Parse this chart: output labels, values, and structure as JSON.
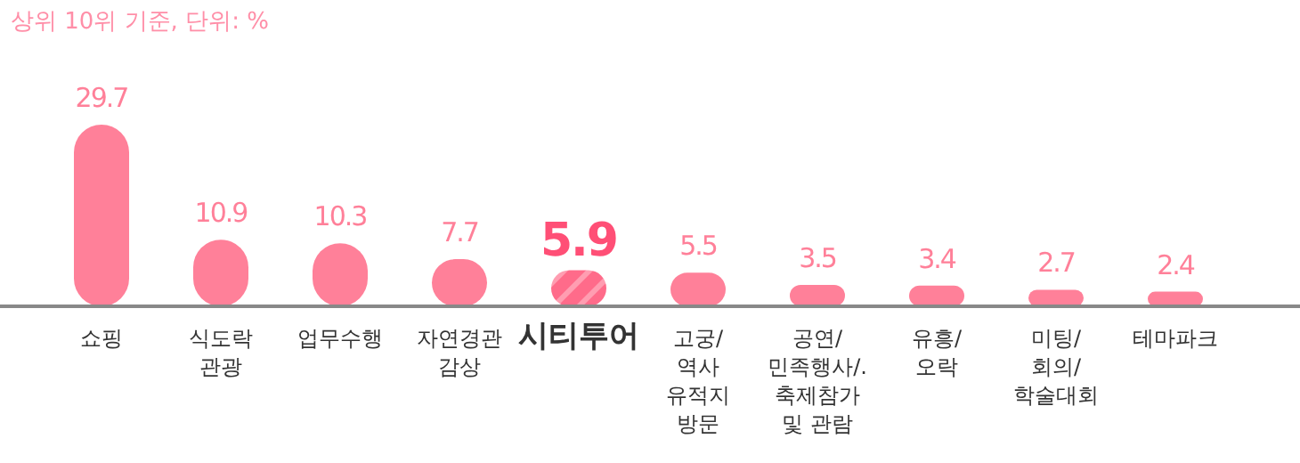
{
  "chart_data": {
    "type": "bar",
    "title": "상위 10위 기준, 단위: %",
    "categories": [
      "쇼핑",
      "식도락\n관광",
      "업무수행",
      "자연경관\n감상",
      "시티투어",
      "고궁/\n역사\n유적지\n방문",
      "공연/\n민족행사/.\n축제참가\n및 관람",
      "유흥/\n오락",
      "미팅/\n회의/\n학술대회",
      "테마파크"
    ],
    "values": [
      29.7,
      10.9,
      10.3,
      7.7,
      5.9,
      5.5,
      3.5,
      3.4,
      2.7,
      2.4
    ],
    "colors": [
      "#ff8099",
      "#ff8099",
      "#ff8099",
      "#ff8099",
      "#ff6b8a",
      "#ff8099",
      "#ff8099",
      "#ff8099",
      "#ff8099",
      "#ff8099"
    ],
    "data_labels": true
  }
}
